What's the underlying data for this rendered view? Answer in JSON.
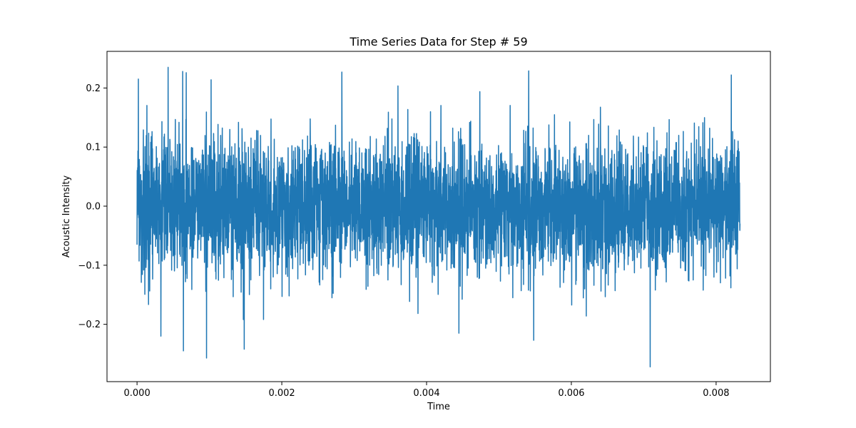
{
  "chart_data": {
    "type": "line",
    "title": "Time Series Data for Step # 59",
    "xlabel": "Time",
    "ylabel": "Acoustic Intensity",
    "xlim": [
      -0.000415,
      0.00875
    ],
    "ylim": [
      -0.297,
      0.262
    ],
    "x_ticks": [
      0.0,
      0.002,
      0.004,
      0.006,
      0.008
    ],
    "x_tick_labels": [
      "0.000",
      "0.002",
      "0.004",
      "0.006",
      "0.008"
    ],
    "y_ticks": [
      -0.2,
      -0.1,
      0.0,
      0.1,
      0.2
    ],
    "y_tick_labels": [
      "−0.2",
      "−0.1",
      "0.0",
      "0.1",
      "0.2"
    ],
    "grid": false,
    "legend": "none",
    "line_color": "#1f77b4",
    "series": [
      {
        "x_start": 0.0,
        "x_end": 0.00833,
        "n_points": 4096,
        "seed": 59,
        "std": 0.058,
        "notable_points": [
          {
            "x": 0.00043,
            "y": 0.235
          },
          {
            "x": 0.00063,
            "y": 0.228
          },
          {
            "x": 0.00068,
            "y": 0.226
          },
          {
            "x": 0.00283,
            "y": 0.227
          },
          {
            "x": 0.00541,
            "y": 0.229
          },
          {
            "x": 0.00821,
            "y": 0.222
          },
          {
            "x": 0.00064,
            "y": -0.245
          },
          {
            "x": 0.00096,
            "y": -0.257
          },
          {
            "x": 0.00148,
            "y": -0.242
          },
          {
            "x": 0.00709,
            "y": -0.272
          },
          {
            "x": 0.00548,
            "y": -0.227
          },
          {
            "x": 0.00033,
            "y": -0.22
          }
        ]
      }
    ]
  }
}
